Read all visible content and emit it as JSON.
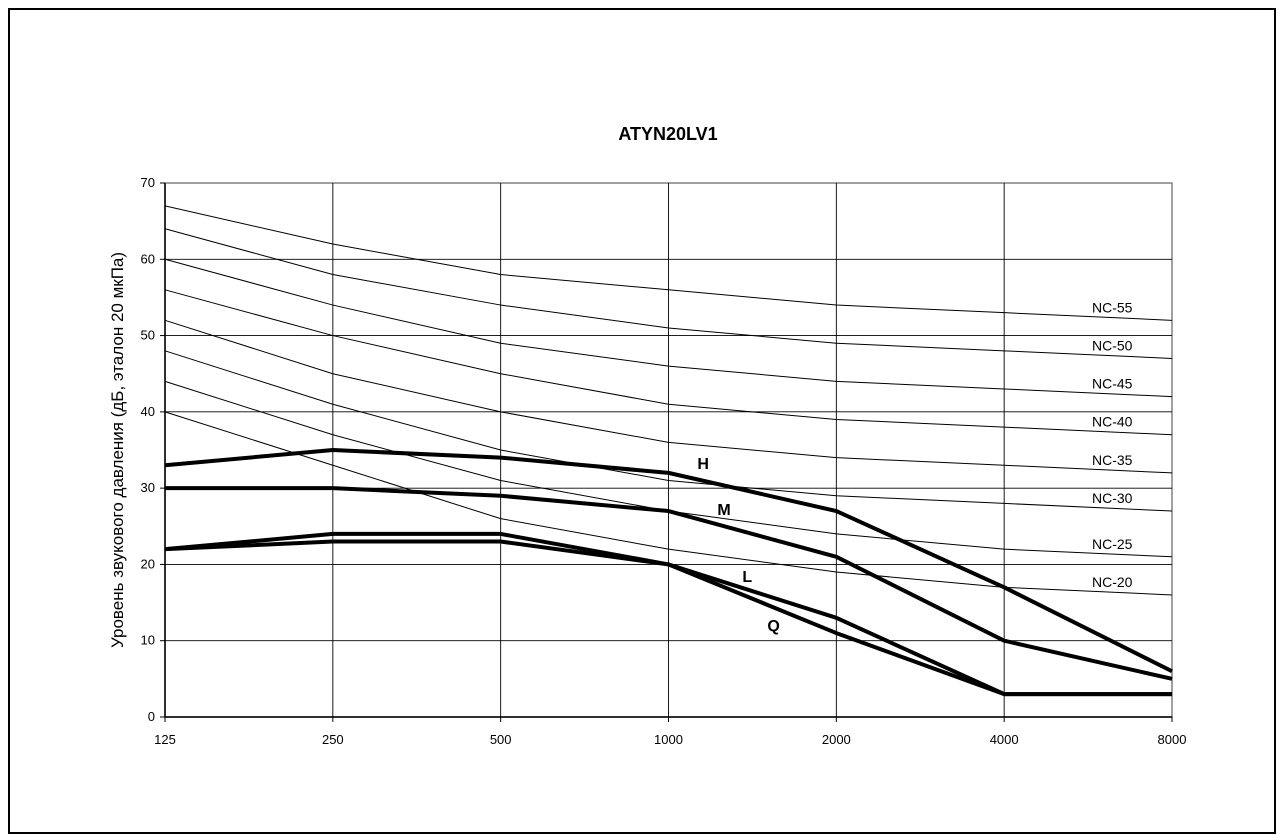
{
  "chart_data": {
    "type": "line",
    "title": "ATYN20LV1",
    "ylabel": "Уровень звукового давления (дБ, эталон 20 мкПа)",
    "xlabel": "",
    "categories": [
      "125",
      "250",
      "500",
      "1000",
      "2000",
      "4000",
      "8000"
    ],
    "yticks": [
      0,
      10,
      20,
      30,
      40,
      50,
      60,
      70
    ],
    "ylim": [
      0,
      70
    ],
    "grid": true,
    "legend": "none",
    "nc_curves": [
      {
        "name": "NC-55",
        "values": [
          67,
          62,
          58,
          56,
          54,
          53,
          52
        ]
      },
      {
        "name": "NC-50",
        "values": [
          64,
          58,
          54,
          51,
          49,
          48,
          47
        ]
      },
      {
        "name": "NC-45",
        "values": [
          60,
          54,
          49,
          46,
          44,
          43,
          42
        ]
      },
      {
        "name": "NC-40",
        "values": [
          56,
          50,
          45,
          41,
          39,
          38,
          37
        ]
      },
      {
        "name": "NC-35",
        "values": [
          52,
          45,
          40,
          36,
          34,
          33,
          32
        ]
      },
      {
        "name": "NC-30",
        "values": [
          48,
          41,
          35,
          31,
          29,
          28,
          27
        ]
      },
      {
        "name": "NC-25",
        "values": [
          44,
          37,
          31,
          27,
          24,
          22,
          21
        ]
      },
      {
        "name": "NC-20",
        "values": [
          40,
          33,
          26,
          22,
          19,
          17,
          16
        ]
      }
    ],
    "series": [
      {
        "name": "H",
        "values": [
          33,
          35,
          34,
          32,
          27,
          17,
          6
        ]
      },
      {
        "name": "M",
        "values": [
          30,
          30,
          29,
          27,
          21,
          10,
          5
        ]
      },
      {
        "name": "L",
        "values": [
          22,
          24,
          24,
          20,
          13,
          3,
          3
        ]
      },
      {
        "name": "Q",
        "values": [
          22,
          23,
          23,
          20,
          11,
          3,
          3
        ]
      }
    ]
  }
}
